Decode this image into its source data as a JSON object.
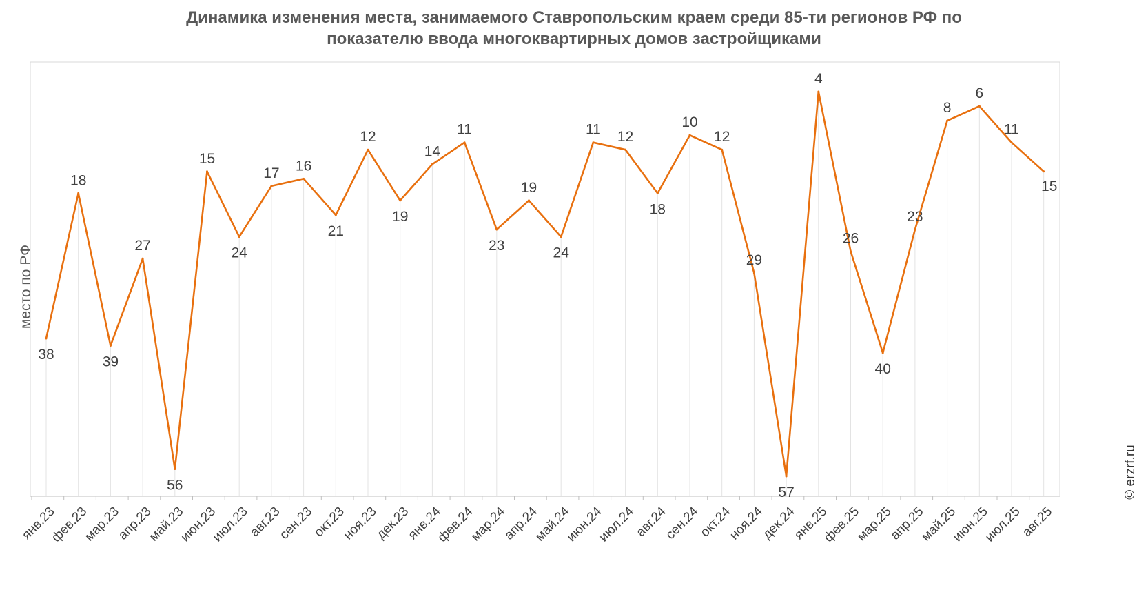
{
  "chart_data": {
    "type": "line",
    "title_line1": "Динамика изменения места, занимаемого Ставропольским краем среди 85-ти регионов РФ по",
    "title_line2": "показателю ввода многоквартирных домов застройщиками",
    "ylabel": "место по РФ",
    "credit": "© erzrf.ru",
    "y_inverted": true,
    "ylim": [
      1,
      60
    ],
    "grid": "vertical",
    "categories": [
      "янв.23",
      "фев.23",
      "мар.23",
      "апр.23",
      "май.23",
      "июн.23",
      "июл.23",
      "авг.23",
      "сен.23",
      "окт.23",
      "ноя.23",
      "дек.23",
      "янв.24",
      "фев.24",
      "мар.24",
      "апр.24",
      "май.24",
      "июн.24",
      "июл.24",
      "авг.24",
      "сен.24",
      "окт.24",
      "ноя.24",
      "дек.24",
      "янв.25",
      "фев.25",
      "мар.25",
      "апр.25",
      "май.25",
      "июн.25",
      "июл.25",
      "авг.25"
    ],
    "series": [
      {
        "values": [
          38,
          18,
          39,
          27,
          56,
          15,
          24,
          17,
          16,
          21,
          12,
          19,
          14,
          11,
          23,
          19,
          24,
          11,
          12,
          18,
          10,
          12,
          29,
          57,
          4,
          26,
          40,
          23,
          8,
          6,
          11,
          15
        ],
        "color": "#E8700F"
      }
    ]
  }
}
